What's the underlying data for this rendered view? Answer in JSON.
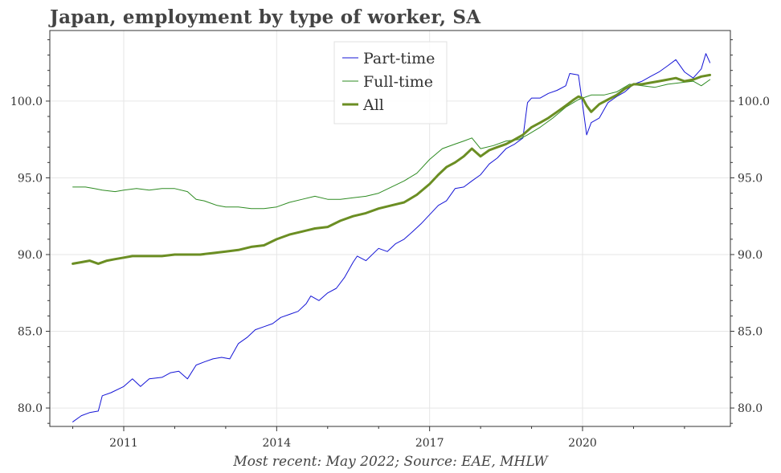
{
  "title": "Japan, employment by type of worker, SA",
  "source_note": "Most recent: May 2022; Source: EAE, MHLW",
  "colors": {
    "part_time": "#1515d6",
    "full_time": "#2e8b22",
    "all": "#6b8e23",
    "grid": "#e6e6e6",
    "axis": "#333333"
  },
  "chart_data": {
    "type": "line",
    "title": "Japan, employment by type of worker, SA",
    "xlabel": "",
    "ylabel": "",
    "xlim": [
      2009.55,
      2022.9
    ],
    "ylim": [
      78.8,
      104.6
    ],
    "grid": true,
    "legend_position": "top-center",
    "x_ticks": [
      {
        "value": 2011,
        "label": "2011"
      },
      {
        "value": 2014,
        "label": "2014"
      },
      {
        "value": 2017,
        "label": "2017"
      },
      {
        "value": 2020,
        "label": "2020"
      }
    ],
    "y_ticks": [
      {
        "value": 80,
        "label": "80.0"
      },
      {
        "value": 85,
        "label": "85.0"
      },
      {
        "value": 90,
        "label": "90.0"
      },
      {
        "value": 95,
        "label": "95.0"
      },
      {
        "value": 100,
        "label": "100.0"
      }
    ],
    "series": [
      {
        "name": "Part-time",
        "color": "#1515d6",
        "width": 1,
        "points": [
          [
            2010.0,
            79.1
          ],
          [
            2010.17,
            79.5
          ],
          [
            2010.33,
            79.7
          ],
          [
            2010.5,
            79.8
          ],
          [
            2010.58,
            80.8
          ],
          [
            2010.75,
            81.0
          ],
          [
            2011.0,
            81.4
          ],
          [
            2011.17,
            81.9
          ],
          [
            2011.33,
            81.4
          ],
          [
            2011.5,
            81.9
          ],
          [
            2011.75,
            82.0
          ],
          [
            2011.92,
            82.3
          ],
          [
            2012.08,
            82.4
          ],
          [
            2012.25,
            81.9
          ],
          [
            2012.42,
            82.8
          ],
          [
            2012.58,
            83.0
          ],
          [
            2012.75,
            83.2
          ],
          [
            2012.92,
            83.3
          ],
          [
            2013.08,
            83.2
          ],
          [
            2013.25,
            84.2
          ],
          [
            2013.42,
            84.6
          ],
          [
            2013.58,
            85.1
          ],
          [
            2013.75,
            85.3
          ],
          [
            2013.92,
            85.5
          ],
          [
            2014.08,
            85.9
          ],
          [
            2014.25,
            86.1
          ],
          [
            2014.42,
            86.3
          ],
          [
            2014.58,
            86.8
          ],
          [
            2014.67,
            87.3
          ],
          [
            2014.83,
            87.0
          ],
          [
            2015.0,
            87.5
          ],
          [
            2015.17,
            87.8
          ],
          [
            2015.33,
            88.5
          ],
          [
            2015.5,
            89.5
          ],
          [
            2015.58,
            89.9
          ],
          [
            2015.75,
            89.6
          ],
          [
            2016.0,
            90.4
          ],
          [
            2016.17,
            90.2
          ],
          [
            2016.33,
            90.7
          ],
          [
            2016.5,
            91.0
          ],
          [
            2016.67,
            91.5
          ],
          [
            2016.83,
            92.0
          ],
          [
            2017.0,
            92.6
          ],
          [
            2017.17,
            93.2
          ],
          [
            2017.33,
            93.5
          ],
          [
            2017.5,
            94.3
          ],
          [
            2017.67,
            94.4
          ],
          [
            2017.83,
            94.8
          ],
          [
            2018.0,
            95.2
          ],
          [
            2018.17,
            95.9
          ],
          [
            2018.33,
            96.3
          ],
          [
            2018.5,
            96.9
          ],
          [
            2018.67,
            97.2
          ],
          [
            2018.83,
            97.6
          ],
          [
            2018.92,
            99.9
          ],
          [
            2019.0,
            100.2
          ],
          [
            2019.17,
            100.2
          ],
          [
            2019.33,
            100.5
          ],
          [
            2019.5,
            100.7
          ],
          [
            2019.67,
            101.0
          ],
          [
            2019.75,
            101.8
          ],
          [
            2019.92,
            101.7
          ],
          [
            2020.0,
            99.8
          ],
          [
            2020.08,
            97.8
          ],
          [
            2020.17,
            98.6
          ],
          [
            2020.33,
            98.9
          ],
          [
            2020.5,
            99.9
          ],
          [
            2020.67,
            100.3
          ],
          [
            2020.83,
            100.6
          ],
          [
            2021.0,
            101.1
          ],
          [
            2021.17,
            101.3
          ],
          [
            2021.33,
            101.6
          ],
          [
            2021.5,
            101.9
          ],
          [
            2021.67,
            102.3
          ],
          [
            2021.83,
            102.7
          ],
          [
            2022.0,
            101.9
          ],
          [
            2022.17,
            101.5
          ],
          [
            2022.33,
            102.1
          ],
          [
            2022.42,
            103.1
          ],
          [
            2022.5,
            102.5
          ]
        ]
      },
      {
        "name": "Full-time",
        "color": "#2e8b22",
        "width": 1,
        "points": [
          [
            2010.0,
            94.4
          ],
          [
            2010.25,
            94.4
          ],
          [
            2010.42,
            94.3
          ],
          [
            2010.58,
            94.2
          ],
          [
            2010.83,
            94.1
          ],
          [
            2011.0,
            94.2
          ],
          [
            2011.25,
            94.3
          ],
          [
            2011.5,
            94.2
          ],
          [
            2011.75,
            94.3
          ],
          [
            2012.0,
            94.3
          ],
          [
            2012.25,
            94.1
          ],
          [
            2012.42,
            93.6
          ],
          [
            2012.58,
            93.5
          ],
          [
            2012.83,
            93.2
          ],
          [
            2013.0,
            93.1
          ],
          [
            2013.25,
            93.1
          ],
          [
            2013.5,
            93.0
          ],
          [
            2013.75,
            93.0
          ],
          [
            2014.0,
            93.1
          ],
          [
            2014.25,
            93.4
          ],
          [
            2014.5,
            93.6
          ],
          [
            2014.75,
            93.8
          ],
          [
            2015.0,
            93.6
          ],
          [
            2015.25,
            93.6
          ],
          [
            2015.5,
            93.7
          ],
          [
            2015.75,
            93.8
          ],
          [
            2016.0,
            94.0
          ],
          [
            2016.25,
            94.4
          ],
          [
            2016.5,
            94.8
          ],
          [
            2016.75,
            95.3
          ],
          [
            2017.0,
            96.2
          ],
          [
            2017.25,
            96.9
          ],
          [
            2017.5,
            97.2
          ],
          [
            2017.67,
            97.4
          ],
          [
            2017.83,
            97.6
          ],
          [
            2018.0,
            96.9
          ],
          [
            2018.25,
            97.1
          ],
          [
            2018.5,
            97.4
          ],
          [
            2018.75,
            97.5
          ],
          [
            2018.92,
            97.8
          ],
          [
            2019.17,
            98.3
          ],
          [
            2019.42,
            98.9
          ],
          [
            2019.67,
            99.6
          ],
          [
            2019.92,
            100.1
          ],
          [
            2020.17,
            100.4
          ],
          [
            2020.42,
            100.4
          ],
          [
            2020.67,
            100.6
          ],
          [
            2020.92,
            101.1
          ],
          [
            2021.17,
            101.0
          ],
          [
            2021.42,
            100.9
          ],
          [
            2021.67,
            101.1
          ],
          [
            2021.92,
            101.2
          ],
          [
            2022.17,
            101.3
          ],
          [
            2022.33,
            101.0
          ],
          [
            2022.5,
            101.4
          ]
        ]
      },
      {
        "name": "All",
        "color": "#6b8e23",
        "width": 3,
        "points": [
          [
            2010.0,
            89.4
          ],
          [
            2010.17,
            89.5
          ],
          [
            2010.33,
            89.6
          ],
          [
            2010.5,
            89.4
          ],
          [
            2010.67,
            89.6
          ],
          [
            2010.83,
            89.7
          ],
          [
            2011.0,
            89.8
          ],
          [
            2011.17,
            89.9
          ],
          [
            2011.33,
            89.9
          ],
          [
            2011.5,
            89.9
          ],
          [
            2011.75,
            89.9
          ],
          [
            2012.0,
            90.0
          ],
          [
            2012.25,
            90.0
          ],
          [
            2012.5,
            90.0
          ],
          [
            2012.75,
            90.1
          ],
          [
            2013.0,
            90.2
          ],
          [
            2013.25,
            90.3
          ],
          [
            2013.5,
            90.5
          ],
          [
            2013.75,
            90.6
          ],
          [
            2014.0,
            91.0
          ],
          [
            2014.25,
            91.3
          ],
          [
            2014.5,
            91.5
          ],
          [
            2014.75,
            91.7
          ],
          [
            2015.0,
            91.8
          ],
          [
            2015.25,
            92.2
          ],
          [
            2015.5,
            92.5
          ],
          [
            2015.75,
            92.7
          ],
          [
            2016.0,
            93.0
          ],
          [
            2016.25,
            93.2
          ],
          [
            2016.5,
            93.4
          ],
          [
            2016.75,
            93.9
          ],
          [
            2017.0,
            94.6
          ],
          [
            2017.17,
            95.2
          ],
          [
            2017.33,
            95.7
          ],
          [
            2017.5,
            96.0
          ],
          [
            2017.67,
            96.4
          ],
          [
            2017.83,
            96.9
          ],
          [
            2018.0,
            96.4
          ],
          [
            2018.17,
            96.8
          ],
          [
            2018.33,
            97.0
          ],
          [
            2018.5,
            97.2
          ],
          [
            2018.67,
            97.5
          ],
          [
            2018.83,
            97.8
          ],
          [
            2019.0,
            98.3
          ],
          [
            2019.17,
            98.6
          ],
          [
            2019.33,
            98.9
          ],
          [
            2019.5,
            99.3
          ],
          [
            2019.67,
            99.7
          ],
          [
            2019.83,
            100.1
          ],
          [
            2019.92,
            100.3
          ],
          [
            2020.0,
            100.2
          ],
          [
            2020.08,
            99.7
          ],
          [
            2020.17,
            99.3
          ],
          [
            2020.33,
            99.8
          ],
          [
            2020.5,
            100.1
          ],
          [
            2020.67,
            100.4
          ],
          [
            2020.83,
            100.8
          ],
          [
            2021.0,
            101.1
          ],
          [
            2021.17,
            101.1
          ],
          [
            2021.33,
            101.2
          ],
          [
            2021.5,
            101.3
          ],
          [
            2021.67,
            101.4
          ],
          [
            2021.83,
            101.5
          ],
          [
            2022.0,
            101.3
          ],
          [
            2022.17,
            101.4
          ],
          [
            2022.33,
            101.6
          ],
          [
            2022.5,
            101.7
          ]
        ]
      }
    ]
  }
}
